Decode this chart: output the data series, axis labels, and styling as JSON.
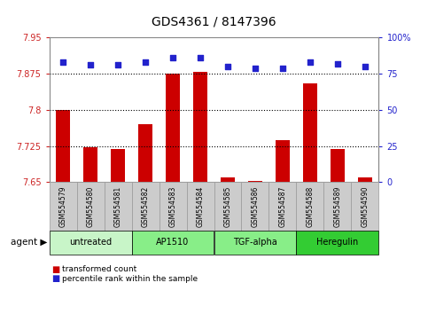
{
  "title": "GDS4361 / 8147396",
  "samples": [
    "GSM554579",
    "GSM554580",
    "GSM554581",
    "GSM554582",
    "GSM554583",
    "GSM554584",
    "GSM554585",
    "GSM554586",
    "GSM554587",
    "GSM554588",
    "GSM554589",
    "GSM554590"
  ],
  "red_values": [
    7.8,
    7.722,
    7.718,
    7.77,
    7.876,
    7.879,
    7.66,
    7.652,
    7.738,
    7.855,
    7.718,
    7.66
  ],
  "blue_values": [
    83,
    81,
    81,
    83,
    86,
    86,
    80,
    79,
    79,
    83,
    82,
    80
  ],
  "ylim_left": [
    7.65,
    7.95
  ],
  "ylim_right": [
    0,
    100
  ],
  "yticks_left": [
    7.65,
    7.725,
    7.8,
    7.875,
    7.95
  ],
  "yticks_right": [
    0,
    25,
    50,
    75,
    100
  ],
  "ytick_labels_left": [
    "7.65",
    "7.725",
    "7.8",
    "7.875",
    "7.95"
  ],
  "ytick_labels_right": [
    "0",
    "25",
    "50",
    "75",
    "100%"
  ],
  "hlines": [
    7.725,
    7.8,
    7.875
  ],
  "agent_groups": [
    {
      "label": "untreated",
      "start": 0,
      "end": 3,
      "color": "#c8f5c8"
    },
    {
      "label": "AP1510",
      "start": 3,
      "end": 6,
      "color": "#88ee88"
    },
    {
      "label": "TGF-alpha",
      "start": 6,
      "end": 9,
      "color": "#88ee88"
    },
    {
      "label": "Heregulin",
      "start": 9,
      "end": 12,
      "color": "#33cc33"
    }
  ],
  "bar_color": "#cc0000",
  "dot_color": "#2222cc",
  "left_tick_color": "#cc2222",
  "right_tick_color": "#2222cc",
  "plot_bg": "#ffffff",
  "sample_bg": "#cccccc",
  "legend_red_label": "transformed count",
  "legend_blue_label": "percentile rank within the sample",
  "agent_label": "agent"
}
